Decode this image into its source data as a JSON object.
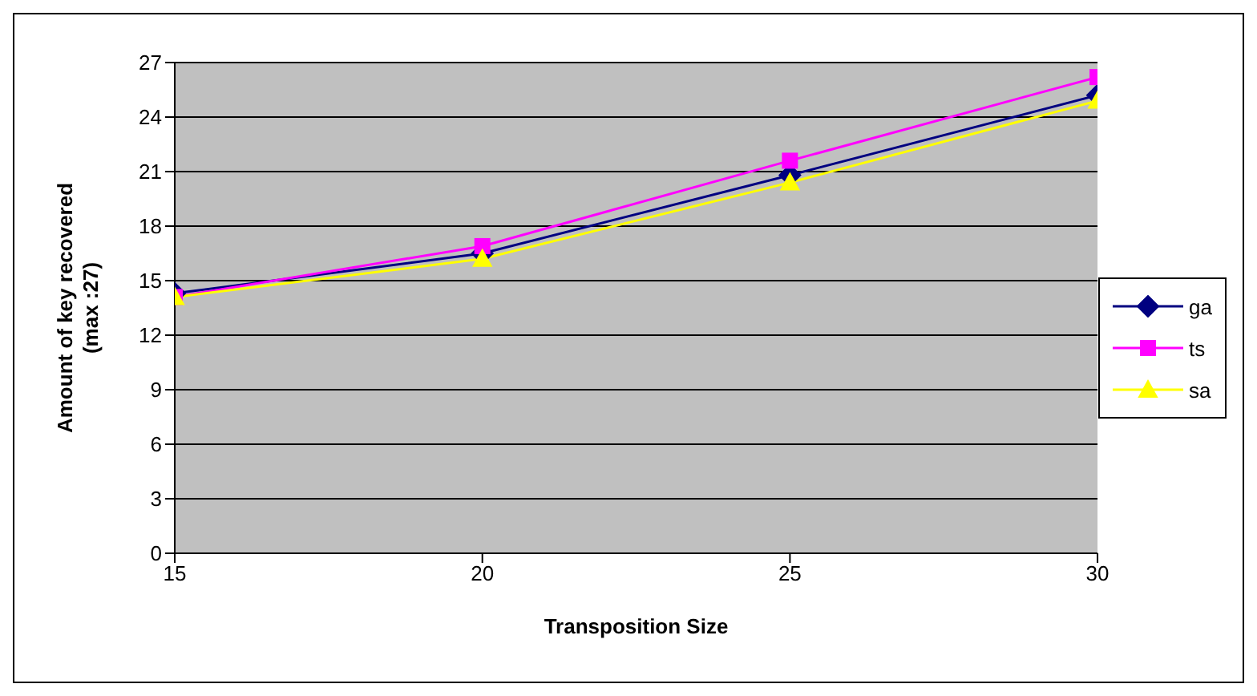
{
  "chart_data": {
    "type": "line",
    "xlabel": "Transposition Size",
    "ylabel": "Amount of key recovered\n(max :27)",
    "x": [
      15,
      20,
      25,
      30
    ],
    "xlim": [
      15,
      30
    ],
    "xticks": [
      15,
      20,
      25,
      30
    ],
    "ylim": [
      0,
      27
    ],
    "yticks": [
      0,
      3,
      6,
      9,
      12,
      15,
      18,
      21,
      24,
      27
    ],
    "grid": "y",
    "legend": "right",
    "series": [
      {
        "name": "ga",
        "color": "#000080",
        "marker": "diamond",
        "values": [
          14.3,
          16.5,
          20.8,
          25.2
        ]
      },
      {
        "name": "ts",
        "color": "#ff00ff",
        "marker": "square",
        "values": [
          14.1,
          16.9,
          21.6,
          26.2
        ]
      },
      {
        "name": "sa",
        "color": "#ffff00",
        "marker": "triangle",
        "values": [
          14.1,
          16.2,
          20.4,
          24.9
        ]
      }
    ]
  }
}
